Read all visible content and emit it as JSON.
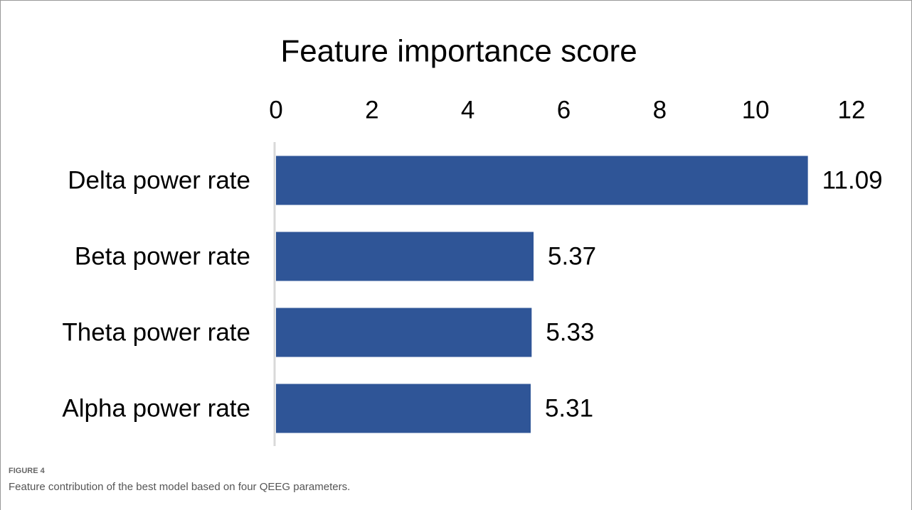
{
  "chart_data": {
    "type": "bar",
    "orientation": "horizontal",
    "title": "Feature importance score",
    "categories": [
      "Delta power rate",
      "Beta power rate",
      "Theta power rate",
      "Alpha power rate"
    ],
    "values": [
      11.09,
      5.37,
      5.33,
      5.31
    ],
    "color": "#2f5597",
    "xlim": [
      0,
      12
    ],
    "xticks": [
      0,
      2,
      4,
      6,
      8,
      10,
      12
    ],
    "grid": false,
    "axis_position": "top"
  },
  "figure": {
    "label": "FIGURE 4",
    "caption": "Feature contribution of the best model based on four QEEG parameters."
  }
}
